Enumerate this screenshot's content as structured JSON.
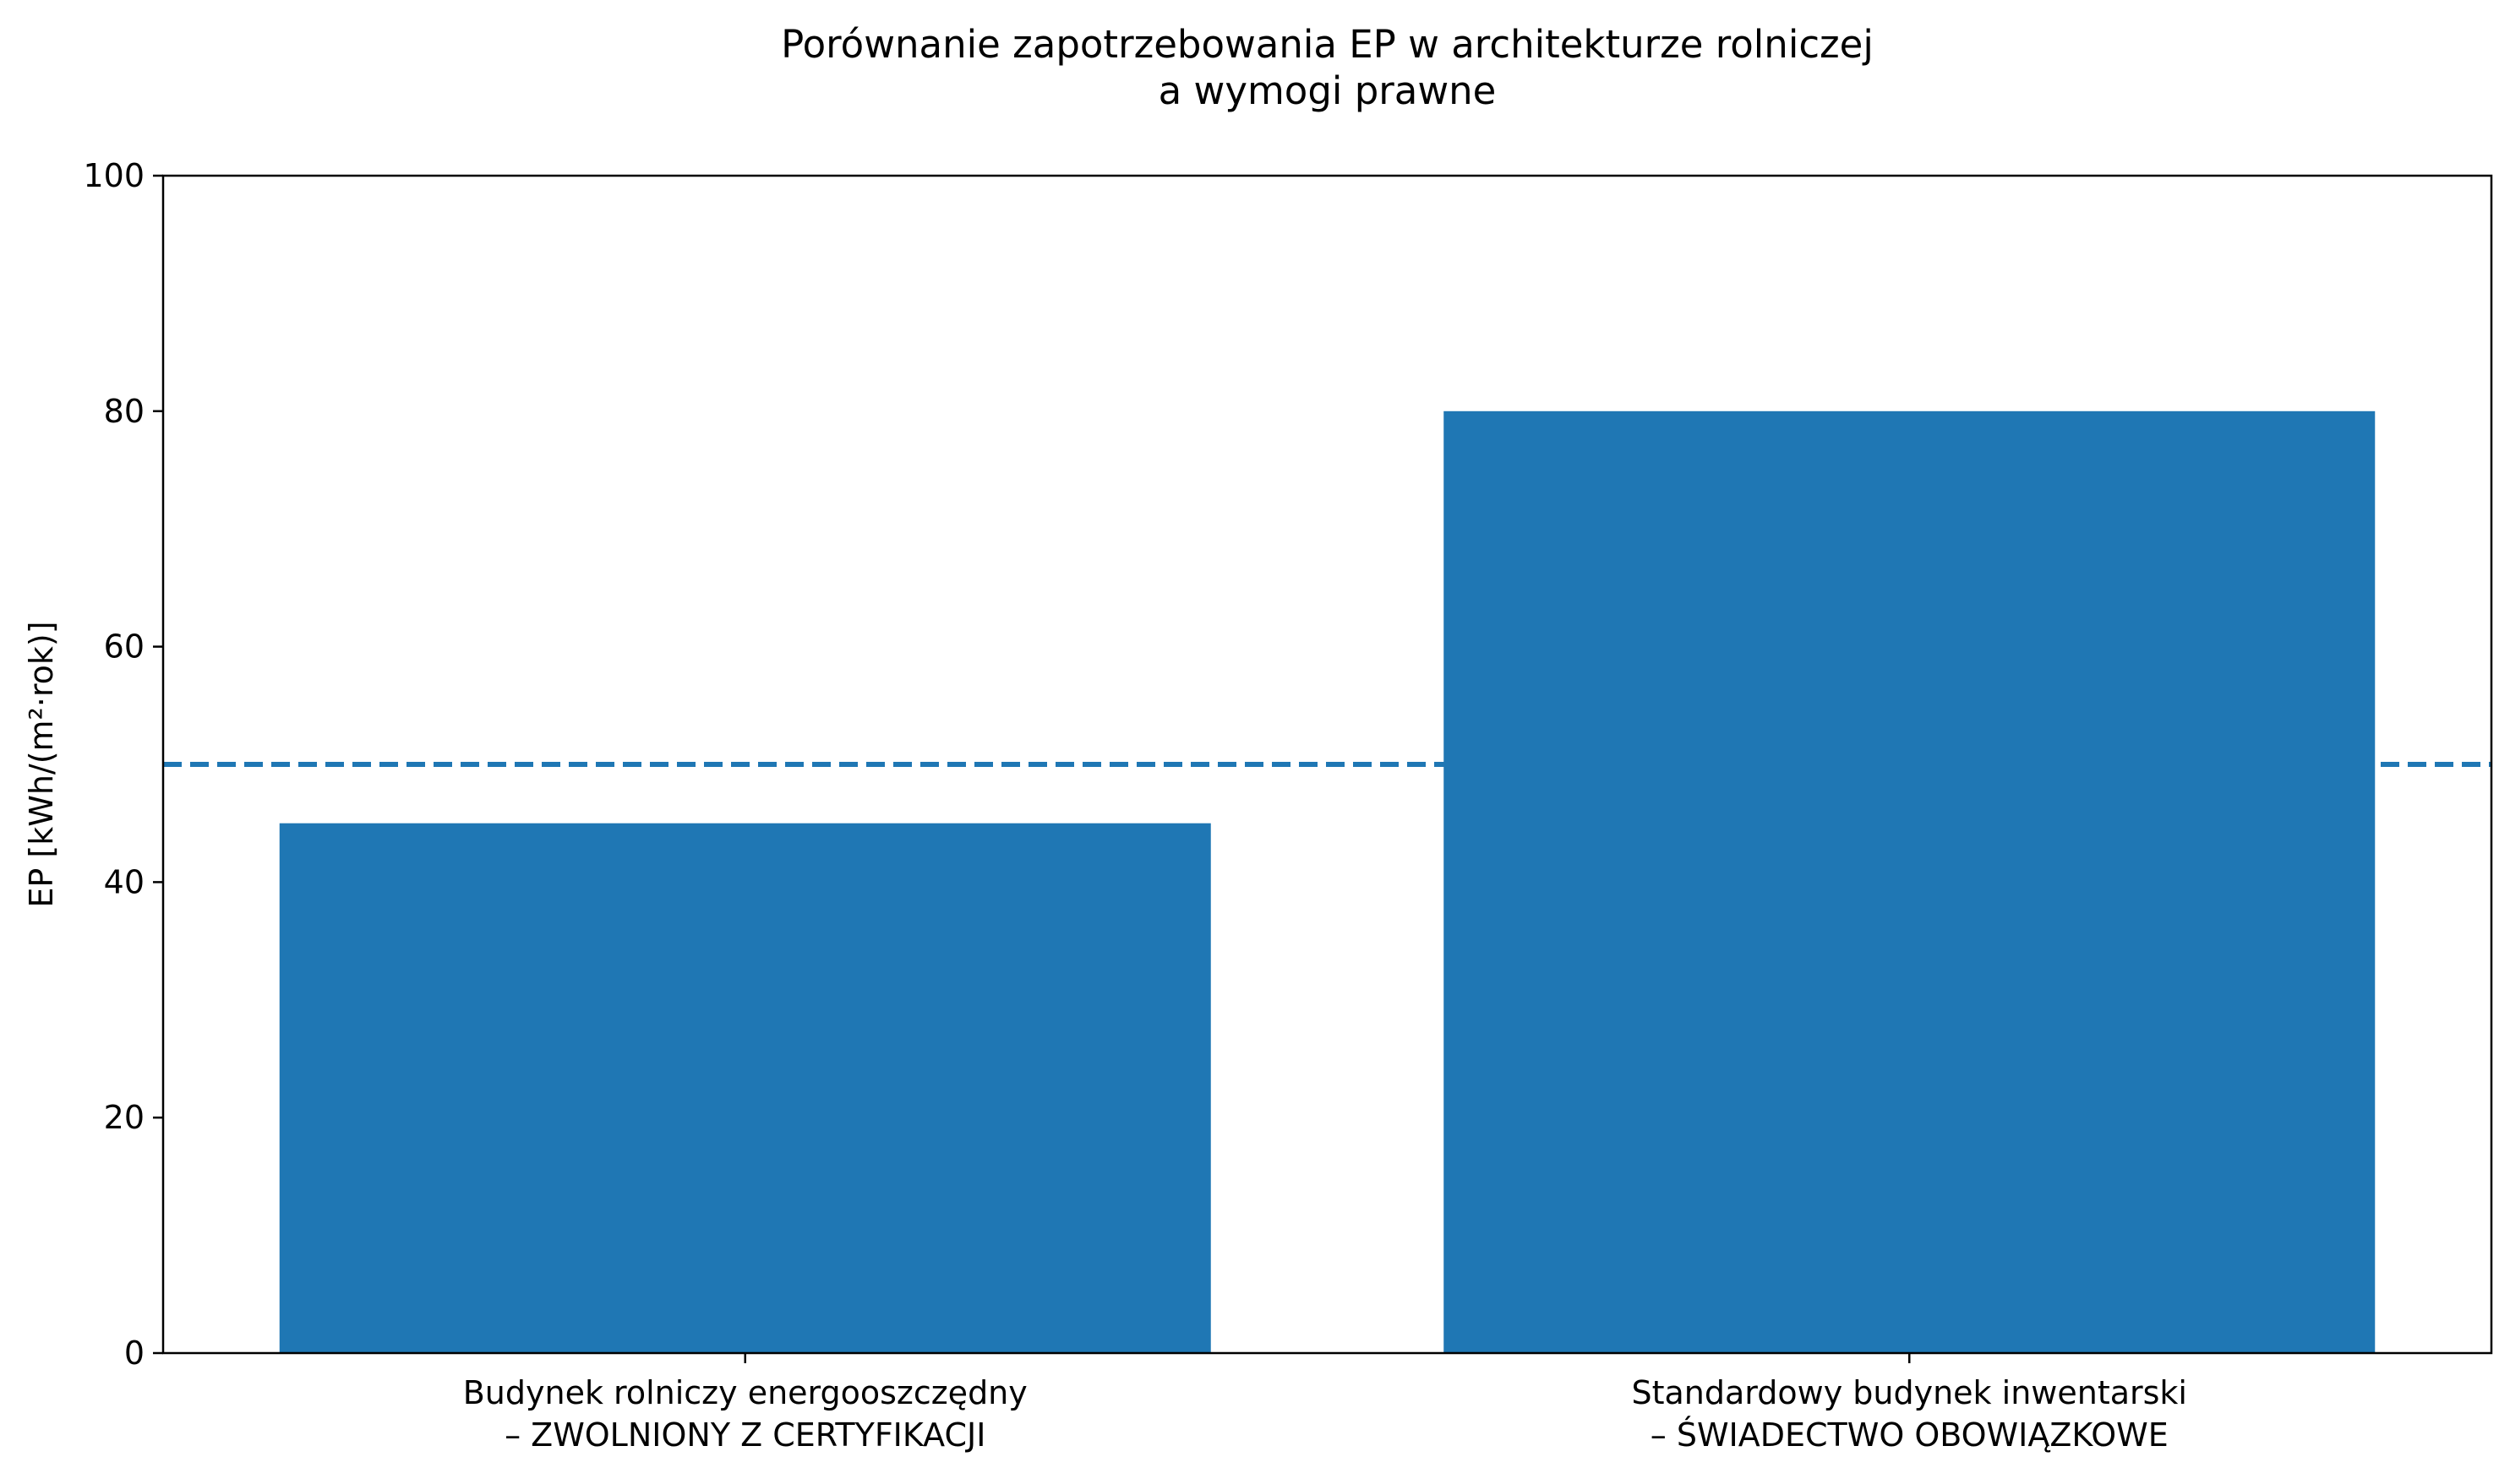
{
  "chart_data": {
    "type": "bar",
    "title": [
      "Porównanie zapotrzebowania EP w architekturze rolniczej",
      "a wymogi prawne"
    ],
    "xlabel": "",
    "ylabel": "EP [kWh/(m²·rok)]",
    "categories": [
      [
        "Budynek rolniczy energooszczędny",
        "– ZWOLNIONY Z CERTYFIKACJI"
      ],
      [
        "Standardowy budynek inwentarski",
        "– ŚWIADECTWO OBOWIĄZKOWE"
      ]
    ],
    "values": [
      45,
      80
    ],
    "ylim": [
      0,
      100
    ],
    "yticks": [
      0,
      20,
      40,
      60,
      80,
      100
    ],
    "reference_line": {
      "value": 50,
      "style": "dashed"
    },
    "grid": false,
    "colors": {
      "bar": "#1f77b4",
      "reference_line": "#1f77b4",
      "axis": "#000000"
    }
  }
}
